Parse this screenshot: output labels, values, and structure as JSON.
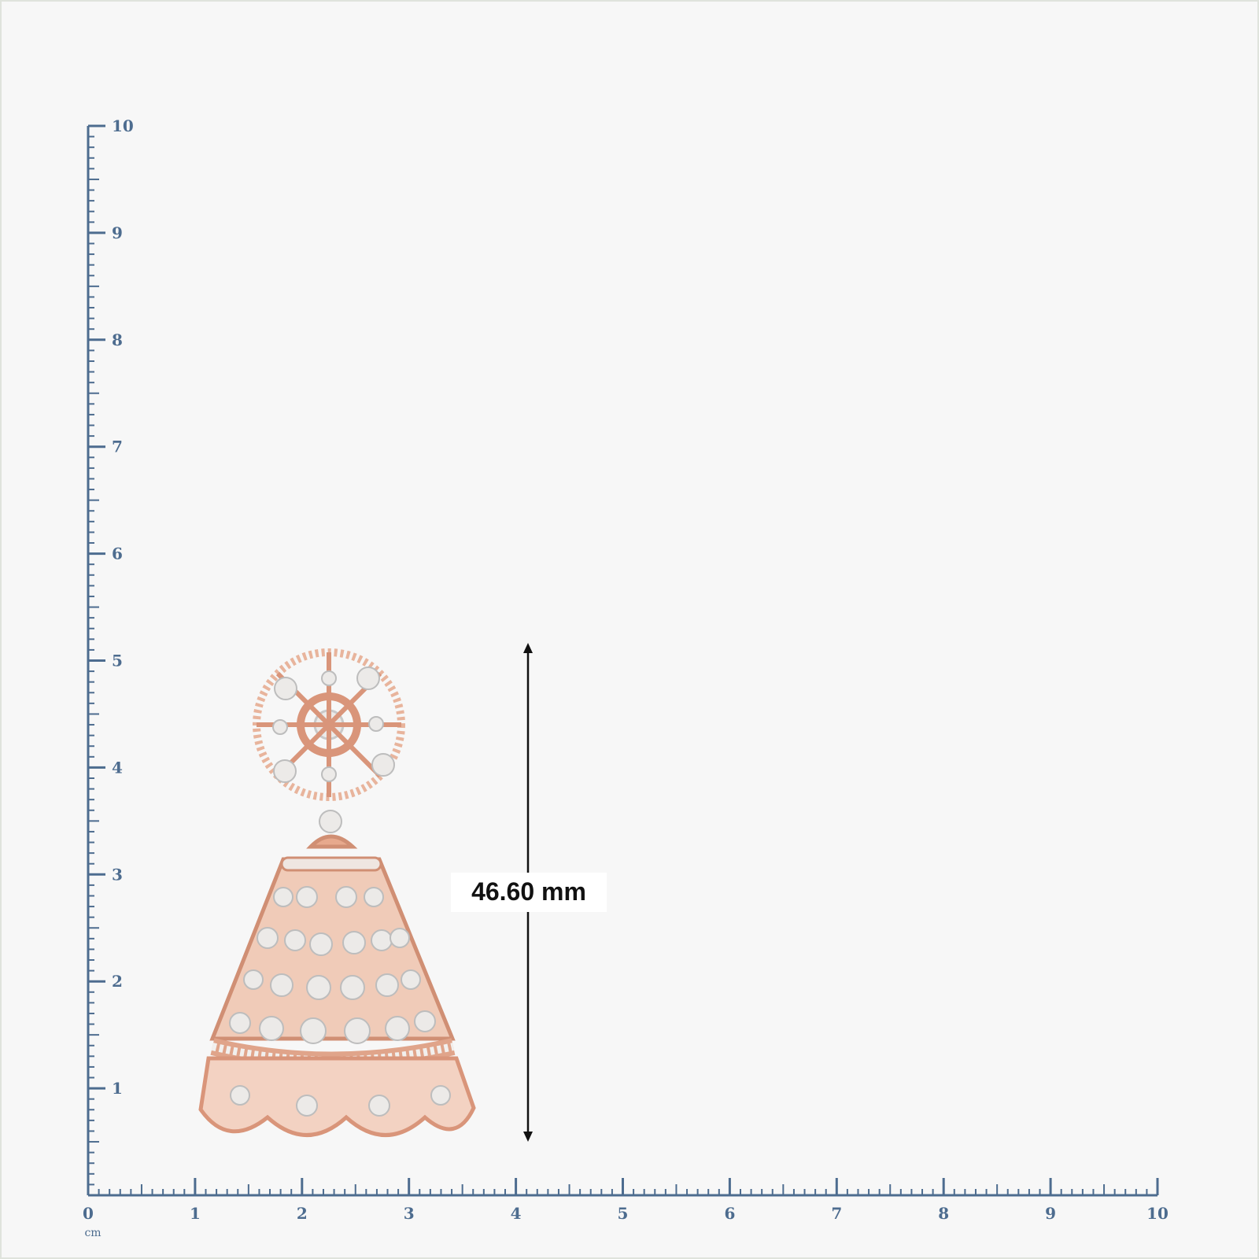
{
  "ruler": {
    "unit": "cm",
    "x_labels": [
      0,
      1,
      2,
      3,
      4,
      5,
      6,
      7,
      8,
      9,
      10
    ],
    "y_labels": [
      1,
      2,
      3,
      4,
      5,
      6,
      7,
      8,
      9,
      10
    ]
  },
  "measurement": "46.60 mm"
}
